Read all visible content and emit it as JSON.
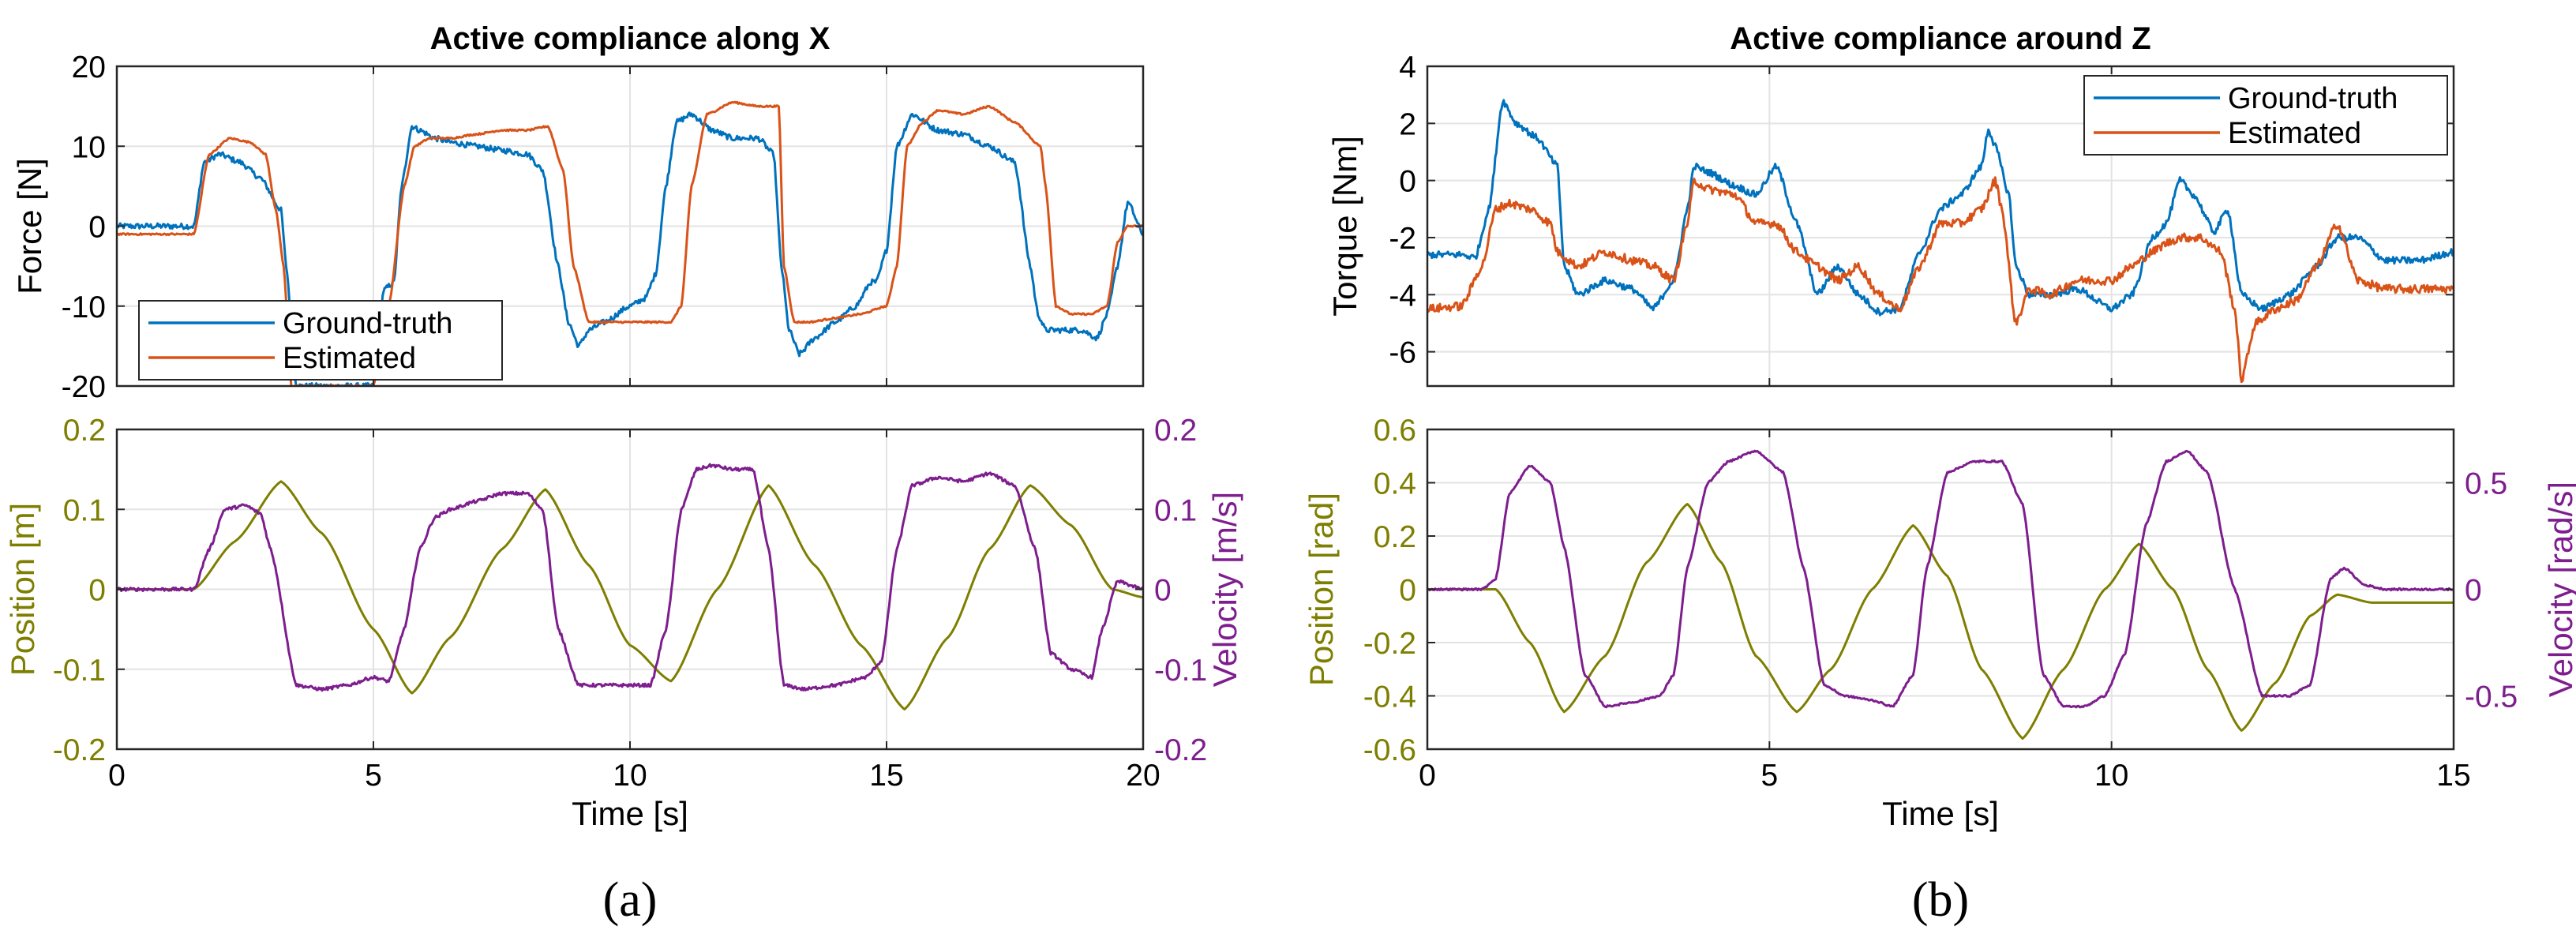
{
  "colors": {
    "ground_truth": "#0072BD",
    "estimated": "#D95319",
    "position": "#7E7E00",
    "velocity": "#7E1E8E",
    "grid": "#e3e3e3",
    "axis": "#262626"
  },
  "panel_labels": [
    "(a)",
    "(b)"
  ],
  "chart_data": [
    {
      "id": "a_top",
      "type": "line",
      "title": "Active compliance along X",
      "xlabel": "",
      "ylabel": "Force [N]",
      "xlim": [
        0,
        20
      ],
      "ylim": [
        -20,
        20
      ],
      "xticks": [
        0,
        5,
        10,
        15,
        20
      ],
      "yticks": [
        -20,
        -10,
        0,
        10,
        20
      ],
      "xtick_labels": [],
      "ytick_labels": [
        "-20",
        "-10",
        "0",
        "10",
        "20"
      ],
      "grid": true,
      "legend": "bottom-left",
      "series": [
        {
          "name": "Ground-truth",
          "color": "#0072BD",
          "noise": 0.35,
          "x": [
            0,
            1.5,
            1.7,
            2.0,
            2.4,
            2.8,
            3.2,
            3.3,
            3.5,
            3.8,
            4.5,
            5.0,
            5.2,
            5.4,
            5.55,
            5.75,
            5.9,
            6.2,
            6.5,
            7.0,
            7.5,
            8.0,
            8.3,
            8.6,
            8.8,
            9.0,
            9.2,
            9.5,
            10.0,
            10.3,
            10.5,
            10.7,
            10.9,
            11.2,
            11.6,
            12.0,
            12.5,
            12.8,
            12.95,
            13.1,
            13.3,
            13.6,
            14.0,
            14.4,
            14.7,
            14.8,
            15.0,
            15.2,
            15.5,
            16.0,
            16.5,
            17.0,
            17.5,
            17.8,
            17.95,
            18.1,
            18.4,
            18.8,
            19.1,
            19.3,
            19.5,
            19.7,
            20
          ],
          "y": [
            0,
            0,
            8,
            9,
            8,
            6,
            2,
            -5,
            -20,
            -20,
            -20,
            -20,
            -8,
            -7,
            5,
            12.5,
            12,
            11,
            10.5,
            10,
            9.5,
            9,
            7,
            -5,
            -12,
            -15,
            -13,
            -12,
            -10,
            -9,
            -6,
            5,
            13,
            14,
            12,
            11,
            11,
            9,
            -5,
            -13,
            -16,
            -14,
            -12,
            -10,
            -7,
            -7,
            -3,
            10,
            14,
            12,
            11.5,
            10,
            8,
            -5,
            -11,
            -13,
            -13,
            -13,
            -14,
            -11,
            -5,
            3,
            -1
          ]
        },
        {
          "name": "Estimated",
          "color": "#D95319",
          "noise": 0.1,
          "x": [
            0,
            1.5,
            1.8,
            2.2,
            2.6,
            2.9,
            3.1,
            3.25,
            3.4,
            3.8,
            4.5,
            5.0,
            5.3,
            5.6,
            5.8,
            6.1,
            6.5,
            7.0,
            7.5,
            8.0,
            8.4,
            8.7,
            8.9,
            9.2,
            9.5,
            10.0,
            10.5,
            10.8,
            11.0,
            11.2,
            11.5,
            12.0,
            12.5,
            12.9,
            13.0,
            13.2,
            13.5,
            14.0,
            14.5,
            15.0,
            15.2,
            15.4,
            15.7,
            16.0,
            16.5,
            17.0,
            17.5,
            18.0,
            18.1,
            18.3,
            18.6,
            19.0,
            19.3,
            19.5,
            19.7,
            20
          ],
          "y": [
            -1,
            -1,
            9,
            11,
            10.5,
            9,
            2,
            -5,
            -20,
            -20,
            -20,
            -20,
            -10,
            5,
            10,
            11,
            11,
            11.5,
            12,
            12,
            12.5,
            7,
            -5,
            -12,
            -12,
            -12,
            -12,
            -12,
            -10,
            5,
            14,
            15.5,
            15,
            15,
            -5,
            -12,
            -12,
            -11.5,
            -11,
            -10,
            -5,
            10,
            13,
            14.5,
            14,
            15,
            13,
            10,
            5,
            -10,
            -11,
            -11,
            -10,
            -2,
            0,
            0
          ]
        }
      ]
    },
    {
      "id": "a_bottom",
      "type": "line",
      "title": "",
      "xlabel": "Time [s]",
      "ylabel": "Position [m]",
      "y2label": "Velocity [m/s]",
      "xlim": [
        0,
        20
      ],
      "ylim": [
        -0.2,
        0.2
      ],
      "y2lim": [
        -0.2,
        0.2
      ],
      "xticks": [
        0,
        5,
        10,
        15,
        20
      ],
      "yticks": [
        -0.2,
        -0.1,
        0,
        0.1,
        0.2
      ],
      "y2ticks": [
        -0.2,
        -0.1,
        0,
        0.1,
        0.2
      ],
      "xtick_labels": [
        "0",
        "5",
        "10",
        "15",
        "20"
      ],
      "ytick_labels": [
        "-0.2",
        "-0.1",
        "0",
        "0.1",
        "0.2"
      ],
      "y2tick_labels": [
        "-0.2",
        "-0.1",
        "0",
        "0.1",
        "0.2"
      ],
      "grid": true,
      "legend": "none",
      "series": [
        {
          "name": "Position",
          "axis": "left",
          "color": "#7E7E00",
          "noise": 0,
          "x": [
            0,
            1.5,
            2.3,
            3.2,
            4.0,
            5.0,
            5.75,
            6.5,
            7.5,
            8.35,
            9.2,
            10.0,
            10.8,
            11.7,
            12.7,
            13.6,
            14.5,
            15.35,
            16.2,
            17.0,
            17.8,
            18.6,
            19.4,
            20
          ],
          "y": [
            0,
            0,
            0.06,
            0.135,
            0.07,
            -0.05,
            -0.13,
            -0.06,
            0.05,
            0.125,
            0.03,
            -0.07,
            -0.115,
            0.0,
            0.13,
            0.03,
            -0.07,
            -0.15,
            -0.06,
            0.05,
            0.13,
            0.08,
            0,
            -0.01
          ]
        },
        {
          "name": "Velocity",
          "axis": "right",
          "color": "#7E1E8E",
          "noise": 0.002,
          "x": [
            0,
            1.5,
            1.8,
            2.1,
            2.5,
            2.8,
            3.0,
            3.5,
            4.0,
            4.5,
            5.0,
            5.3,
            5.6,
            5.9,
            6.2,
            6.5,
            7.0,
            7.5,
            8.0,
            8.3,
            8.6,
            9.0,
            9.5,
            10.0,
            10.4,
            10.7,
            11.0,
            11.3,
            11.6,
            12.0,
            12.4,
            12.7,
            13.0,
            13.4,
            14.0,
            14.6,
            14.9,
            15.2,
            15.5,
            16.0,
            16.5,
            17.0,
            17.5,
            17.9,
            18.2,
            18.6,
            19.0,
            19.2,
            19.5,
            20
          ],
          "y": [
            0,
            0,
            0.05,
            0.1,
            0.105,
            0.095,
            0.05,
            -0.12,
            -0.125,
            -0.12,
            -0.11,
            -0.115,
            -0.05,
            0.05,
            0.09,
            0.1,
            0.11,
            0.12,
            0.12,
            0.1,
            -0.05,
            -0.12,
            -0.12,
            -0.12,
            -0.12,
            -0.05,
            0.1,
            0.15,
            0.155,
            0.15,
            0.15,
            0.05,
            -0.12,
            -0.125,
            -0.12,
            -0.11,
            -0.09,
            0.05,
            0.13,
            0.14,
            0.135,
            0.145,
            0.13,
            0.05,
            -0.08,
            -0.1,
            -0.11,
            -0.05,
            0.01,
            0
          ]
        }
      ]
    },
    {
      "id": "b_top",
      "type": "line",
      "title": "Active compliance around Z",
      "xlabel": "",
      "ylabel": "Torque [Nm]",
      "xlim": [
        0,
        15
      ],
      "ylim": [
        -7.2,
        4
      ],
      "xticks": [
        0,
        5,
        10,
        15
      ],
      "yticks": [
        -6,
        -4,
        -2,
        0,
        2,
        4
      ],
      "xtick_labels": [],
      "ytick_labels": [
        "-6",
        "-4",
        "-2",
        "0",
        "2",
        "4"
      ],
      "grid": true,
      "legend": "top-right",
      "series": [
        {
          "name": "Ground-truth",
          "color": "#0072BD",
          "noise": 0.12,
          "x": [
            0,
            0.5,
            0.7,
            0.9,
            1.1,
            1.3,
            1.6,
            1.9,
            2.0,
            2.2,
            2.6,
            3.0,
            3.3,
            3.6,
            3.8,
            3.9,
            4.1,
            4.5,
            4.8,
            5.1,
            5.4,
            5.7,
            6.0,
            6.3,
            6.6,
            6.9,
            7.2,
            7.5,
            7.8,
            8.1,
            8.2,
            8.3,
            8.5,
            8.6,
            8.8,
            9.1,
            9.5,
            10.0,
            10.3,
            10.6,
            10.8,
            11.0,
            11.2,
            11.5,
            11.7,
            11.9,
            12.2,
            12.6,
            13.0,
            13.3,
            13.6,
            14.0,
            14.5,
            15
          ],
          "y": [
            -2.6,
            -2.6,
            -2.7,
            -1,
            2.8,
            2,
            1.5,
            0.5,
            -3,
            -4,
            -3.5,
            -3.8,
            -4.5,
            -3.5,
            -1,
            0.5,
            0.3,
            -0.2,
            -0.5,
            0.5,
            -1.5,
            -4,
            -3,
            -4,
            -4.6,
            -4.5,
            -2.5,
            -1,
            -0.5,
            0.5,
            1.8,
            1.2,
            -0.5,
            -3,
            -4,
            -4,
            -3.8,
            -4.5,
            -4,
            -2,
            -1.5,
            0,
            -0.5,
            -1.8,
            -1,
            -4,
            -4.5,
            -4,
            -3,
            -2,
            -2,
            -2.8,
            -2.8,
            -2.5
          ]
        },
        {
          "name": "Estimated",
          "color": "#D95319",
          "noise": 0.15,
          "x": [
            0,
            0.5,
            0.8,
            1.0,
            1.2,
            1.5,
            1.8,
            1.9,
            2.2,
            2.6,
            3.0,
            3.3,
            3.6,
            3.8,
            3.9,
            4.1,
            4.5,
            4.8,
            5.1,
            5.4,
            5.7,
            6.0,
            6.3,
            6.6,
            6.9,
            7.2,
            7.5,
            7.8,
            8.1,
            8.3,
            8.4,
            8.6,
            8.8,
            9.1,
            9.5,
            10.0,
            10.3,
            10.6,
            10.8,
            11.0,
            11.3,
            11.6,
            11.8,
            11.9,
            12.1,
            12.4,
            12.7,
            13.0,
            13.3,
            13.6,
            14.0,
            14.5,
            15
          ],
          "y": [
            -4.5,
            -4.4,
            -3,
            -1,
            -0.8,
            -1,
            -1.5,
            -2.5,
            -3,
            -2.5,
            -2.8,
            -3,
            -3.5,
            -1.5,
            0,
            -0.3,
            -0.5,
            -1.5,
            -1.5,
            -2.5,
            -3,
            -3.5,
            -3,
            -4,
            -4.5,
            -3,
            -1.5,
            -1.5,
            -1,
            0,
            -1,
            -5,
            -3.8,
            -4,
            -3.5,
            -3.5,
            -3,
            -2.5,
            -2.2,
            -2,
            -2,
            -2.5,
            -4.5,
            -7,
            -5,
            -4.5,
            -4.2,
            -3,
            -1.5,
            -3.5,
            -3.8,
            -3.8,
            -3.8
          ]
        }
      ]
    },
    {
      "id": "b_bottom",
      "type": "line",
      "title": "",
      "xlabel": "Time [s]",
      "ylabel": "Position [rad]",
      "y2label": "Velocity [rad/s]",
      "xlim": [
        0,
        15
      ],
      "ylim": [
        -0.6,
        0.6
      ],
      "y2lim": [
        -0.75,
        0.75
      ],
      "xticks": [
        0,
        5,
        10,
        15
      ],
      "yticks": [
        -0.6,
        -0.4,
        -0.2,
        0,
        0.2,
        0.4,
        0.6
      ],
      "y2ticks": [
        -0.5,
        0,
        0.5
      ],
      "xtick_labels": [
        "0",
        "5",
        "10",
        "15"
      ],
      "ytick_labels": [
        "-0.6",
        "-0.4",
        "-0.2",
        "0",
        "0.2",
        "0.4",
        "0.6"
      ],
      "y2tick_labels": [
        "-0.5",
        "0",
        "0.5"
      ],
      "grid": true,
      "legend": "none",
      "series": [
        {
          "name": "Position",
          "axis": "left",
          "color": "#7E7E00",
          "noise": 0,
          "x": [
            0,
            1.0,
            1.5,
            2.0,
            2.6,
            3.2,
            3.8,
            4.3,
            4.8,
            5.4,
            5.9,
            6.5,
            7.1,
            7.6,
            8.1,
            8.7,
            9.3,
            9.9,
            10.4,
            10.9,
            11.4,
            11.9,
            12.4,
            12.9,
            13.3,
            13.8,
            14.3,
            15
          ],
          "y": [
            0,
            0,
            -0.2,
            -0.46,
            -0.25,
            0.1,
            0.32,
            0.1,
            -0.25,
            -0.46,
            -0.3,
            0,
            0.24,
            0.05,
            -0.3,
            -0.56,
            -0.3,
            0,
            0.17,
            0,
            -0.3,
            -0.53,
            -0.35,
            -0.1,
            -0.02,
            -0.05,
            -0.05,
            -0.05
          ]
        },
        {
          "name": "Velocity",
          "axis": "right",
          "color": "#7E1E8E",
          "noise": 0.004,
          "x": [
            0,
            0.8,
            1.0,
            1.2,
            1.5,
            1.8,
            2.0,
            2.3,
            2.6,
            3.0,
            3.4,
            3.6,
            3.8,
            4.1,
            4.4,
            4.8,
            5.2,
            5.5,
            5.8,
            6.1,
            6.5,
            6.8,
            7.1,
            7.3,
            7.6,
            8.0,
            8.4,
            8.7,
            9.0,
            9.3,
            9.6,
            9.9,
            10.2,
            10.5,
            10.8,
            11.1,
            11.4,
            11.8,
            12.2,
            12.6,
            12.9,
            13.2,
            13.4,
            13.7,
            14.0,
            14.5,
            15
          ],
          "y": [
            0,
            0,
            0.05,
            0.45,
            0.58,
            0.5,
            0.2,
            -0.4,
            -0.55,
            -0.53,
            -0.5,
            -0.4,
            0.1,
            0.5,
            0.6,
            0.65,
            0.55,
            0.1,
            -0.45,
            -0.5,
            -0.52,
            -0.55,
            -0.4,
            0.1,
            0.55,
            0.6,
            0.6,
            0.4,
            -0.4,
            -0.55,
            -0.55,
            -0.5,
            -0.3,
            0.3,
            0.6,
            0.65,
            0.55,
            0.0,
            -0.5,
            -0.5,
            -0.45,
            0.05,
            0.1,
            0.02,
            0,
            0,
            0
          ]
        }
      ]
    }
  ]
}
